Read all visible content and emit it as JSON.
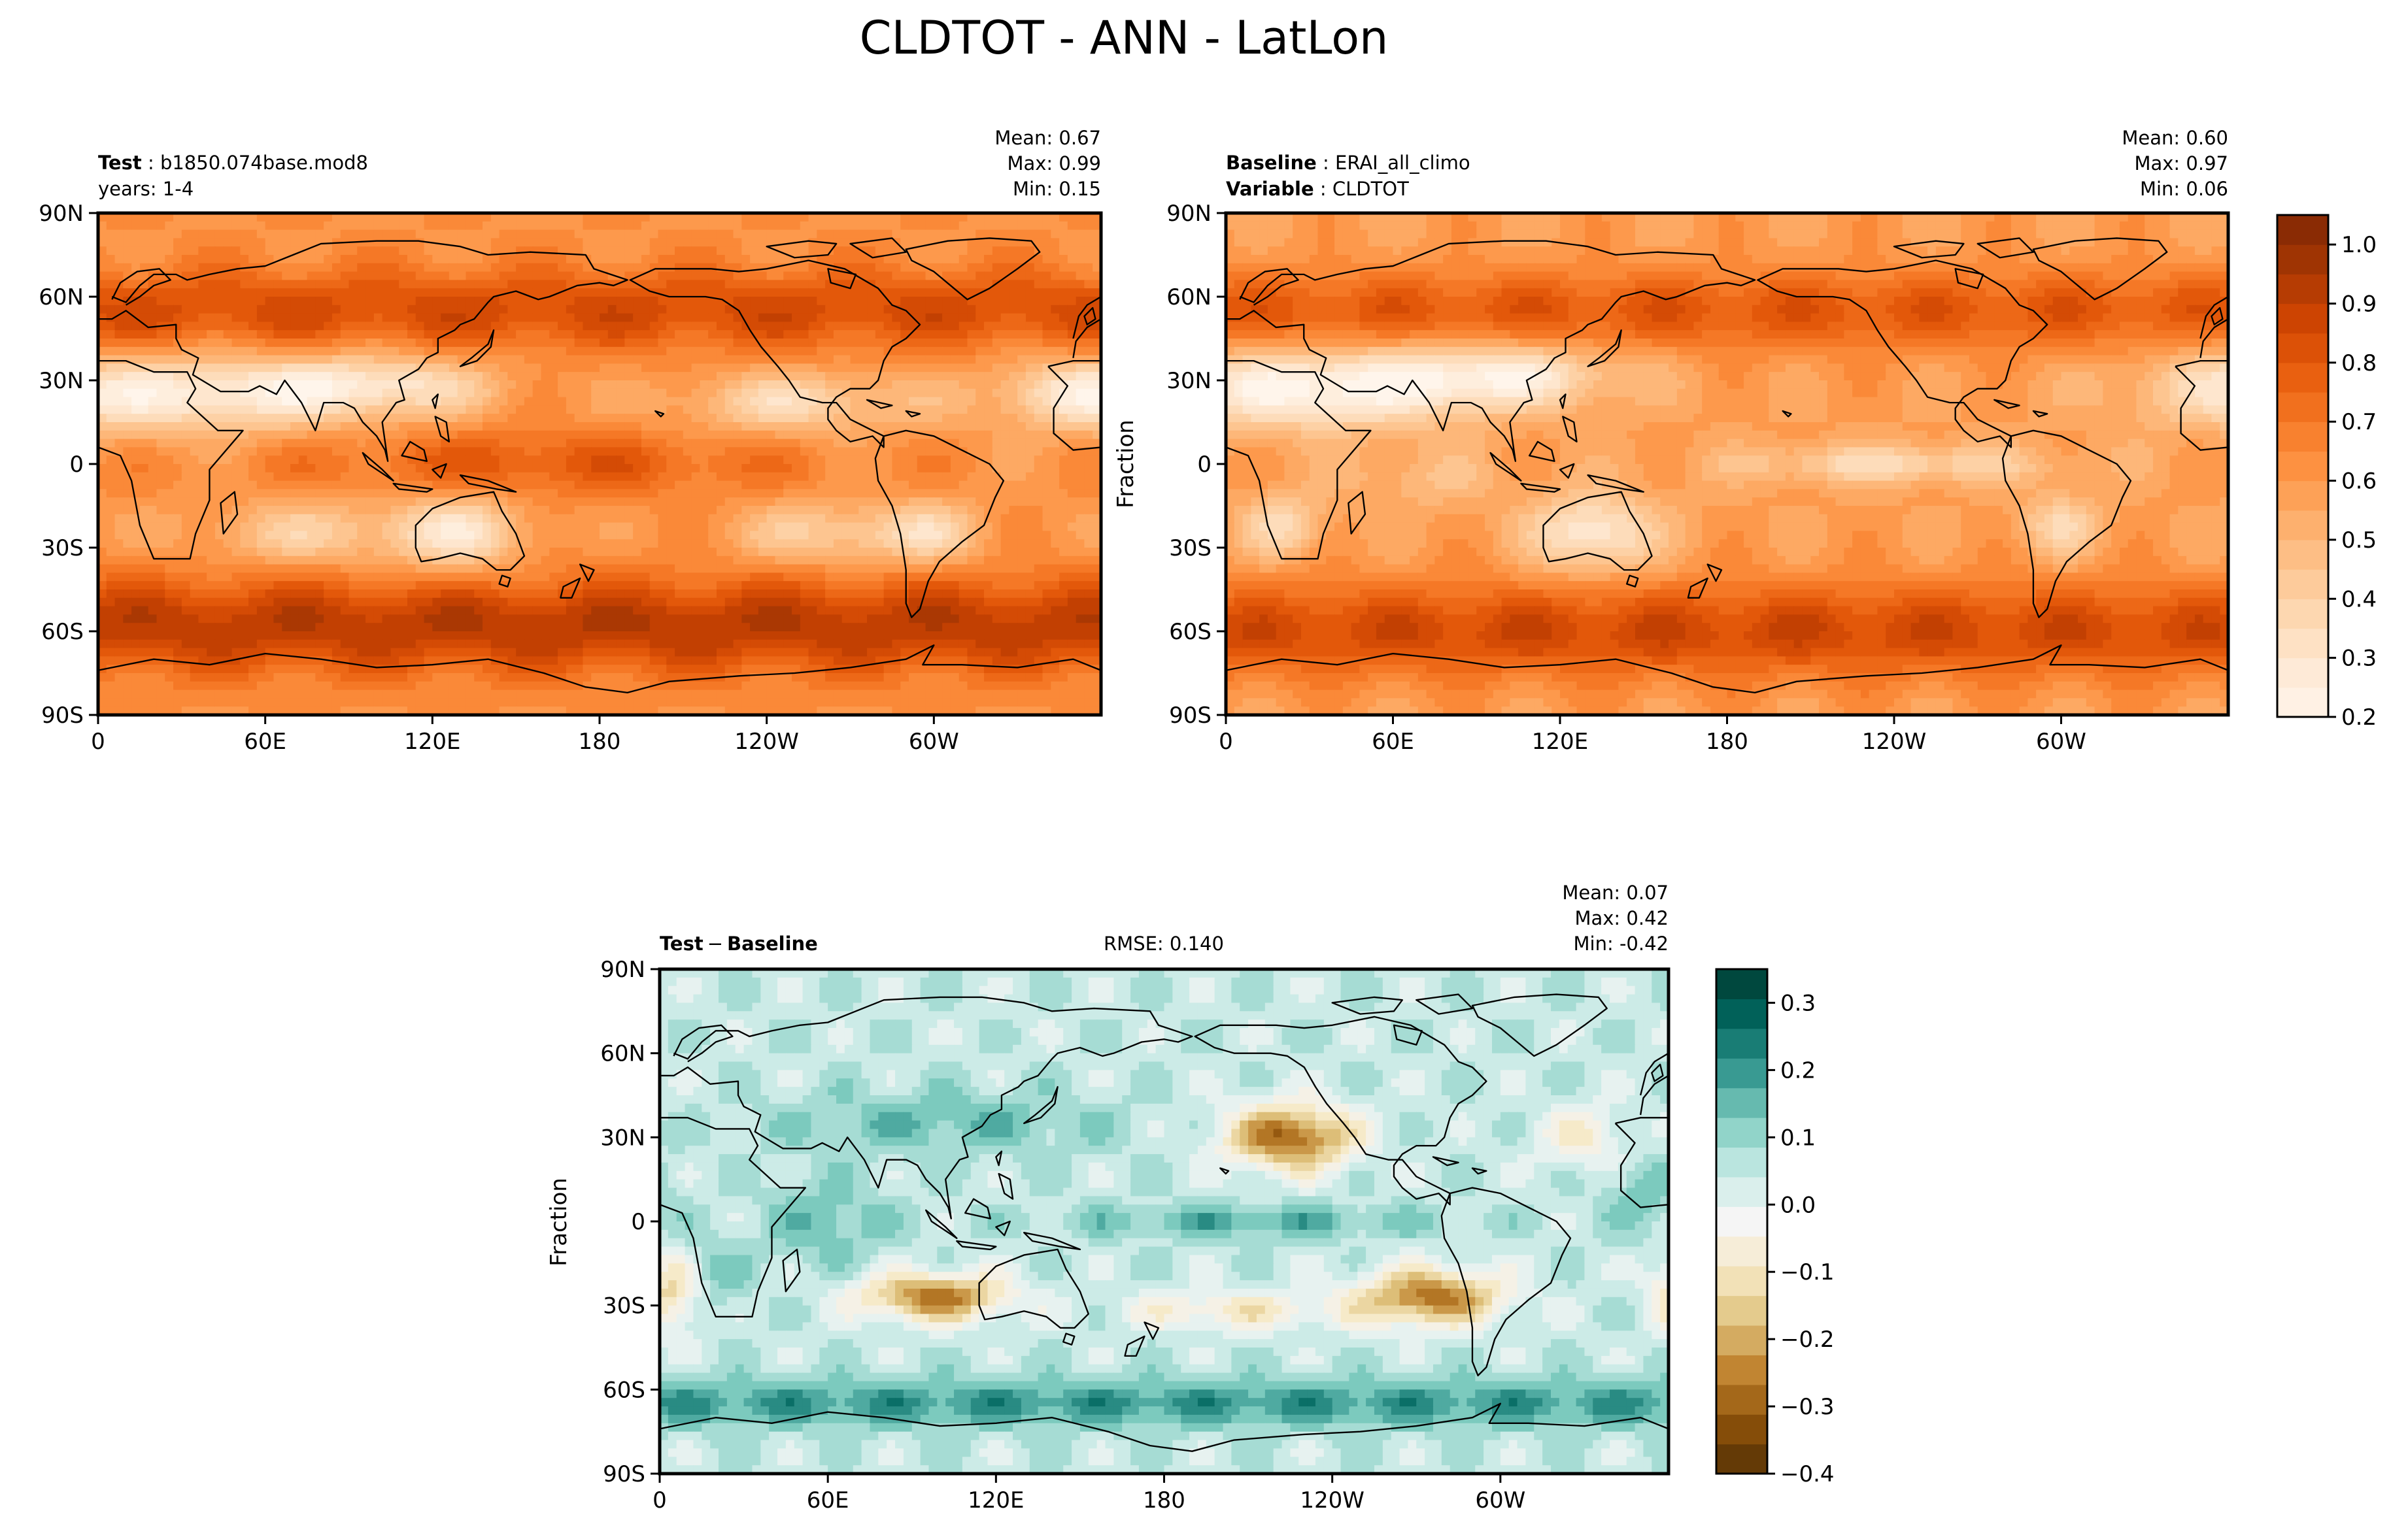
{
  "figure": {
    "title": "CLDTOT - ANN - LatLon"
  },
  "colors": {
    "text": "#000000",
    "orange_ramp": [
      "#fff5eb",
      "#fee9d4",
      "#fdd8b2",
      "#fdc48e",
      "#fdac67",
      "#fd9141",
      "#f47522",
      "#e5590a",
      "#cb4302",
      "#a33603",
      "#7f2704"
    ],
    "diff_ramp": [
      "#543005",
      "#8c510a",
      "#bf812d",
      "#dfc27d",
      "#f6e8c3",
      "#f5f5f5",
      "#c7eae5",
      "#80cdc1",
      "#35978f",
      "#01665e",
      "#003c30"
    ]
  },
  "chart_data": [
    {
      "type": "heatmap",
      "name": "test",
      "label_bold": "Test",
      "label_value": "b1850.074base.mod8",
      "subline": "years: 1-4",
      "stats": {
        "mean_label": "Mean:",
        "mean": "0.67",
        "max_label": "Max:",
        "max": "0.99",
        "min_label": "Min:",
        "min": "0.15"
      },
      "xticks": [
        "0",
        "60E",
        "120E",
        "180",
        "120W",
        "60W"
      ],
      "yticks": [
        "90N",
        "60N",
        "30N",
        "0",
        "30S",
        "60S",
        "90S"
      ],
      "xlim": [
        0,
        360
      ],
      "ylim": [
        -90,
        90
      ],
      "value_range": [
        0.15,
        0.99
      ],
      "colormap": "Oranges",
      "field": "model_cloud"
    },
    {
      "type": "heatmap",
      "name": "baseline",
      "label_bold": "Baseline",
      "label_value": "ERAI_all_climo",
      "label2_bold": "Variable",
      "label2_value": "CLDTOT",
      "ylabel": "Fraction",
      "stats": {
        "mean_label": "Mean:",
        "mean": "0.60",
        "max_label": "Max:",
        "max": "0.97",
        "min_label": "Min:",
        "min": "0.06"
      },
      "xticks": [
        "0",
        "60E",
        "120E",
        "180",
        "120W",
        "60W"
      ],
      "yticks": [
        "90N",
        "60N",
        "30N",
        "0",
        "30S",
        "60S",
        "90S"
      ],
      "xlim": [
        0,
        360
      ],
      "ylim": [
        -90,
        90
      ],
      "value_range": [
        0.06,
        0.97
      ],
      "colormap": "Oranges",
      "field": "obs_cloud",
      "colorbar": {
        "min": 0.2,
        "max": 1.05,
        "ticks": [
          "1.0",
          "0.9",
          "0.8",
          "0.7",
          "0.6",
          "0.5",
          "0.4",
          "0.3",
          "0.2"
        ],
        "tick_values": [
          1.0,
          0.9,
          0.8,
          0.7,
          0.6,
          0.5,
          0.4,
          0.3,
          0.2
        ]
      }
    },
    {
      "type": "heatmap",
      "name": "difference",
      "label_bold": "Test",
      "label_sep": "−",
      "label_bold2": "Baseline",
      "rmse": "RMSE: 0.140",
      "ylabel": "Fraction",
      "stats": {
        "mean_label": "Mean:",
        "mean": "0.07",
        "max_label": "Max:",
        "max": "0.42",
        "min_label": "Min:",
        "min": "-0.42"
      },
      "xticks": [
        "0",
        "60E",
        "120E",
        "180",
        "120W",
        "60W"
      ],
      "yticks": [
        "90N",
        "60N",
        "30N",
        "0",
        "30S",
        "60S",
        "90S"
      ],
      "xlim": [
        0,
        360
      ],
      "ylim": [
        -90,
        90
      ],
      "value_range": [
        -0.42,
        0.42
      ],
      "colormap": "BrBG",
      "field": "difference",
      "colorbar": {
        "min": -0.4,
        "max": 0.35,
        "ticks": [
          "0.3",
          "0.2",
          "0.1",
          "0.0",
          "−0.1",
          "−0.2",
          "−0.3",
          "−0.4"
        ],
        "tick_values": [
          0.3,
          0.2,
          0.1,
          0.0,
          -0.1,
          -0.2,
          -0.3,
          -0.4
        ]
      }
    }
  ]
}
